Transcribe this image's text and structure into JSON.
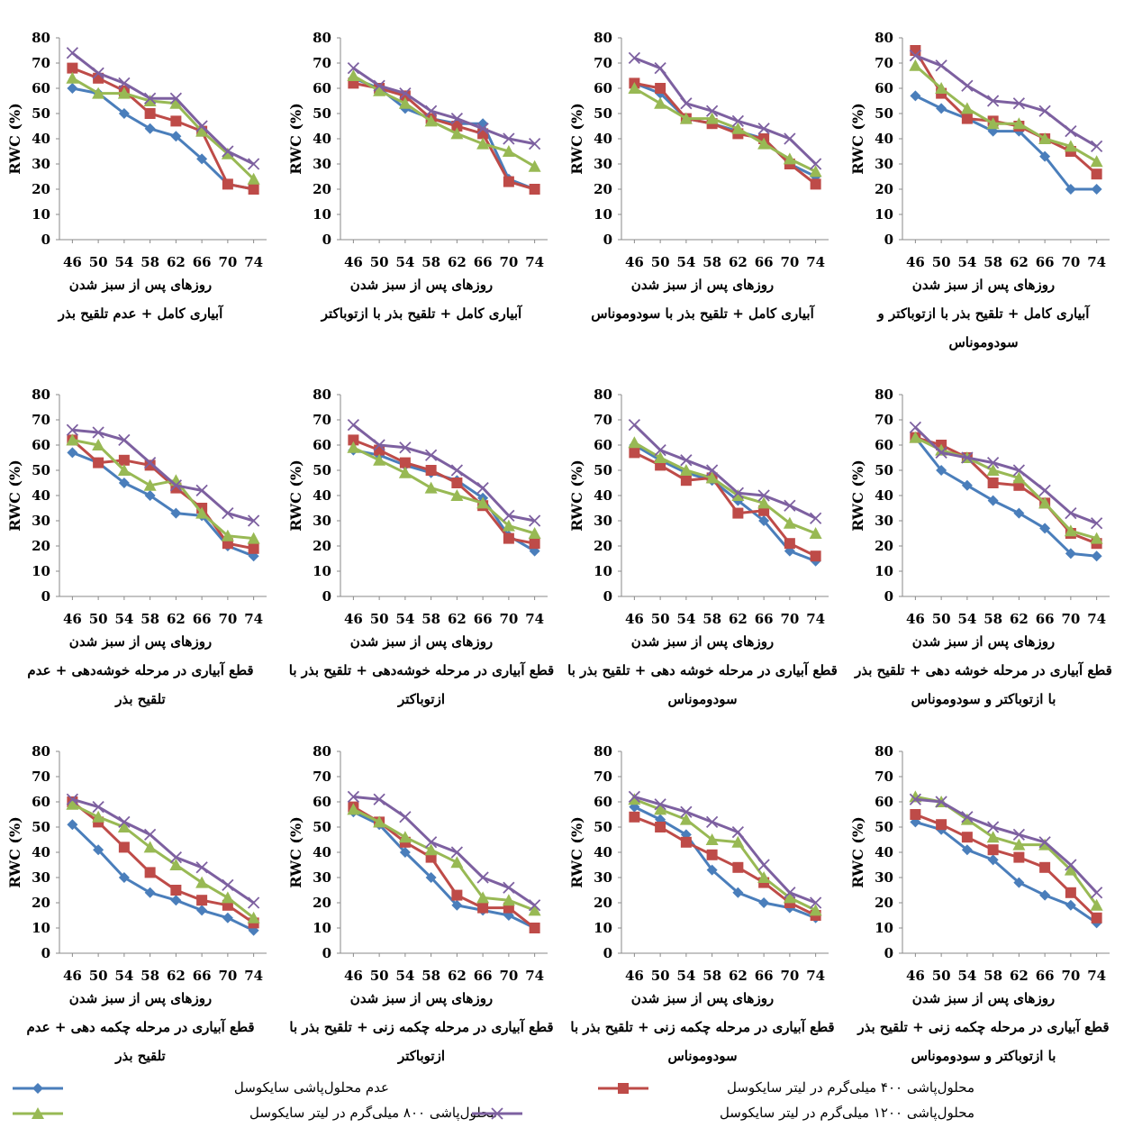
{
  "chart_data": {
    "type": "line",
    "ylabel": "RWC (%)",
    "x": [
      46,
      50,
      54,
      58,
      62,
      66,
      70,
      74
    ],
    "ylim": [
      0,
      80
    ],
    "yticks": [
      0,
      10,
      20,
      30,
      40,
      50,
      60,
      70,
      80
    ],
    "xlabel": "روزهای  پس از سبز شدن",
    "series_names": [
      "عدم محلول‌پاشی سایکوسل",
      "محلول‌پاشی ۴۰۰ میلی‌گرم در لیتر سایکوسل",
      "محلول‌پاشی ۸۰۰ میلی‌گرم در لیتر سایکوسل",
      "محلول‌پاشی ۱۲۰۰ میلی‌گرم در لیتر سایکوسل"
    ],
    "colors": [
      "#4a7ebb",
      "#be4b48",
      "#98b954",
      "#7d60a0"
    ],
    "markers": [
      "diamond",
      "square",
      "triangle",
      "x"
    ],
    "grid": false,
    "legend": "bottom",
    "panels": [
      {
        "caption": [
          "آبیاری کامل + عدم تلقیح بذر"
        ],
        "series": [
          [
            60,
            58,
            50,
            44,
            41,
            32,
            22,
            20
          ],
          [
            68,
            64,
            59,
            50,
            47,
            43,
            22,
            20
          ],
          [
            64,
            58,
            58,
            55,
            54,
            43,
            34,
            24
          ],
          [
            74,
            66,
            62,
            56,
            56,
            45,
            35,
            30
          ]
        ]
      },
      {
        "caption": [
          "آبیاری کامل + تلقیح بذر با ازتوباکتر"
        ],
        "series": [
          [
            64,
            60,
            52,
            48,
            46,
            46,
            24,
            20
          ],
          [
            62,
            60,
            57,
            48,
            45,
            42,
            23,
            20
          ],
          [
            65,
            59,
            54,
            47,
            42,
            38,
            35,
            29
          ],
          [
            68,
            61,
            58,
            51,
            48,
            44,
            40,
            38
          ]
        ]
      },
      {
        "caption": [
          "آبیاری کامل + تلقیح بذر با سودوموناس"
        ],
        "series": [
          [
            62,
            58,
            48,
            46,
            43,
            40,
            30,
            25
          ],
          [
            62,
            60,
            48,
            46,
            42,
            40,
            30,
            22
          ],
          [
            60,
            54,
            48,
            48,
            44,
            38,
            32,
            27
          ],
          [
            72,
            68,
            54,
            51,
            47,
            44,
            40,
            30
          ]
        ]
      },
      {
        "caption": [
          "آبیاری کامل + تلقیح بذر با ازتوباکتر و",
          "سودوموناس"
        ],
        "series": [
          [
            57,
            52,
            48,
            43,
            43,
            33,
            20,
            20
          ],
          [
            75,
            58,
            48,
            47,
            45,
            40,
            35,
            26
          ],
          [
            69,
            60,
            52,
            46,
            46,
            40,
            37,
            31
          ],
          [
            73,
            69,
            61,
            55,
            54,
            51,
            43,
            37
          ]
        ]
      },
      {
        "caption": [
          "قطع آبیاری در مرحله خوشه‌دهی + عدم",
          "تلقیح بذر"
        ],
        "series": [
          [
            57,
            53,
            45,
            40,
            33,
            32,
            20,
            16
          ],
          [
            62,
            53,
            54,
            52,
            43,
            35,
            21,
            19
          ],
          [
            62,
            60,
            50,
            44,
            46,
            33,
            24,
            23
          ],
          [
            66,
            65,
            62,
            53,
            44,
            42,
            33,
            30
          ]
        ]
      },
      {
        "caption": [
          "قطع آبیاری در مرحله خوشه‌دهی + تلقیح بذر با",
          "ازتوباکتر"
        ],
        "series": [
          [
            58,
            56,
            52,
            49,
            46,
            39,
            24,
            18
          ],
          [
            62,
            58,
            53,
            50,
            45,
            36,
            23,
            21
          ],
          [
            59,
            54,
            49,
            43,
            40,
            37,
            28,
            25
          ],
          [
            68,
            60,
            59,
            56,
            50,
            43,
            32,
            30
          ]
        ]
      },
      {
        "caption": [
          "قطع آبیاری در مرحله خوشه دهی + تلقیح بذر با",
          "سودوموناس"
        ],
        "series": [
          [
            60,
            54,
            49,
            46,
            38,
            30,
            18,
            14
          ],
          [
            57,
            52,
            46,
            47,
            33,
            34,
            21,
            16
          ],
          [
            61,
            55,
            50,
            47,
            40,
            37,
            29,
            25
          ],
          [
            68,
            58,
            54,
            50,
            41,
            40,
            36,
            31
          ]
        ]
      },
      {
        "caption": [
          "قطع آبیاری در مرحله خوشه دهی + تلقیح بذر",
          "با ازتوباکتر و سودوموناس"
        ],
        "series": [
          [
            63,
            50,
            44,
            38,
            33,
            27,
            17,
            16
          ],
          [
            63,
            60,
            55,
            45,
            44,
            37,
            25,
            21
          ],
          [
            63,
            58,
            55,
            50,
            47,
            37,
            26,
            23
          ],
          [
            67,
            57,
            55,
            53,
            50,
            42,
            33,
            29
          ]
        ]
      },
      {
        "caption": [
          "قطع آبیاری در مرحله چکمه دهی + عدم",
          "تلقیح بذر"
        ],
        "series": [
          [
            51,
            41,
            30,
            24,
            21,
            17,
            14,
            9
          ],
          [
            60,
            52,
            42,
            32,
            25,
            21,
            19,
            12
          ],
          [
            59,
            54,
            50,
            42,
            35,
            28,
            22,
            14
          ],
          [
            61,
            58,
            52,
            47,
            38,
            34,
            27,
            20
          ]
        ]
      },
      {
        "caption": [
          "قطع آبیاری در مرحله چکمه زنی + تلقیح بذر با",
          "ازتوباکتر"
        ],
        "series": [
          [
            56,
            51,
            40,
            30,
            19,
            17,
            15,
            10
          ],
          [
            58,
            52,
            44,
            38,
            23,
            18,
            18,
            10
          ],
          [
            57,
            52,
            46,
            41,
            36,
            22,
            21,
            17
          ],
          [
            62,
            61,
            54,
            44,
            40,
            30,
            26,
            19
          ]
        ]
      },
      {
        "caption": [
          "قطع آبیاری در مرحله چکمه زنی + تلقیح بذر با",
          "سودوموناس"
        ],
        "series": [
          [
            58,
            53,
            47,
            33,
            24,
            20,
            18,
            14
          ],
          [
            54,
            50,
            44,
            39,
            34,
            28,
            20,
            15
          ],
          [
            61,
            57,
            53,
            45,
            44,
            30,
            22,
            17
          ],
          [
            62,
            59,
            56,
            52,
            48,
            35,
            24,
            20
          ]
        ]
      },
      {
        "caption": [
          "قطع آبیاری در مرحله چکمه زنی + تلقیح بذر",
          "با ازتوباکتر و سودوموناس"
        ],
        "series": [
          [
            52,
            49,
            41,
            37,
            28,
            23,
            19,
            12
          ],
          [
            55,
            51,
            46,
            41,
            38,
            34,
            24,
            14
          ],
          [
            62,
            60,
            53,
            46,
            43,
            43,
            33,
            19
          ],
          [
            61,
            60,
            54,
            50,
            47,
            44,
            35,
            24
          ]
        ]
      }
    ]
  }
}
